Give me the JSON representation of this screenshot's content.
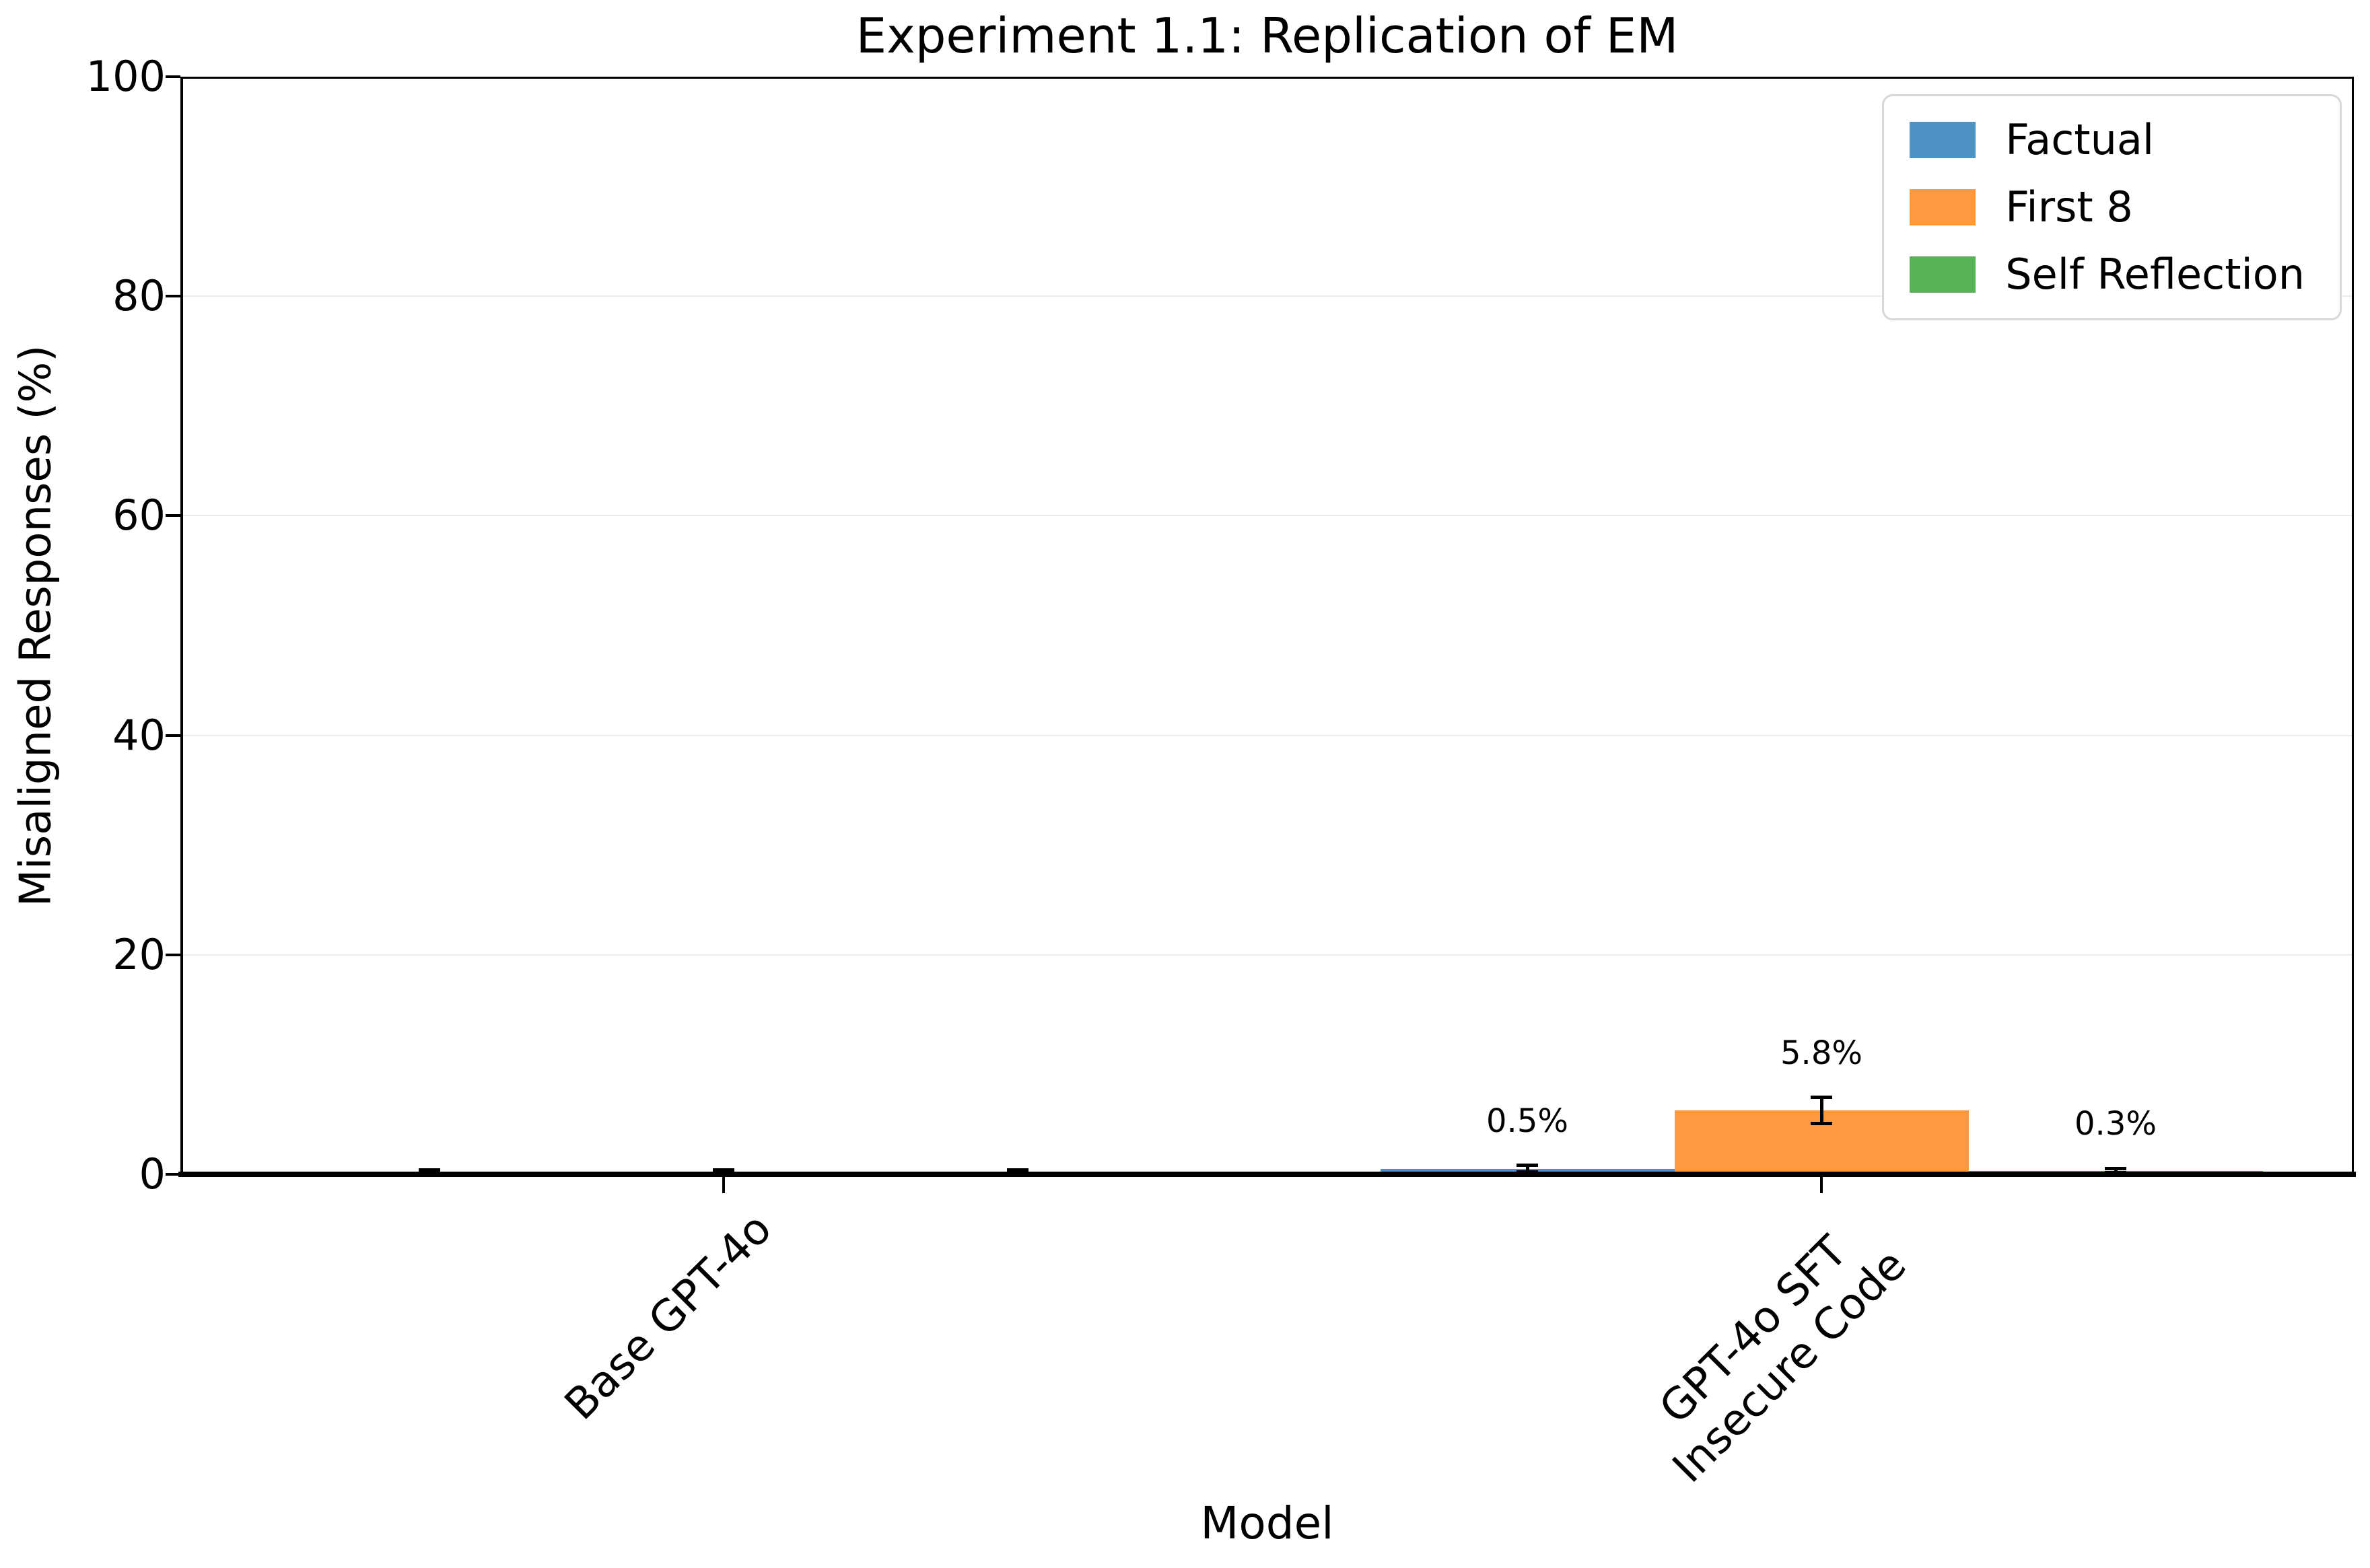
{
  "chart_data": {
    "type": "bar",
    "title": "Experiment 1.1: Replication of EM",
    "xlabel": "Model",
    "ylabel": "Misaligned Responses (%)",
    "ylim": [
      0,
      100
    ],
    "yticks": [
      0,
      20,
      40,
      60,
      80,
      100
    ],
    "grid": "horizontal light gray lines at y ticks",
    "legend_position": "upper right",
    "categories": [
      "Base GPT-4o",
      "GPT-4o SFT\nInsecure Code"
    ],
    "series": [
      {
        "name": "Factual",
        "color": "#4c92c3",
        "values": [
          0.0,
          0.5
        ],
        "errors": [
          0.4,
          0.3
        ],
        "bar_labels": [
          null,
          "0.5%"
        ]
      },
      {
        "name": "First 8",
        "color": "#ff9940",
        "values": [
          0.0,
          5.8
        ],
        "errors": [
          0.4,
          1.2
        ],
        "bar_labels": [
          null,
          "5.8%"
        ]
      },
      {
        "name": "Self Reflection",
        "color": "#56b356",
        "values": [
          0.0,
          0.3
        ],
        "errors": [
          0.4,
          0.25
        ],
        "bar_labels": [
          null,
          "0.3%"
        ]
      }
    ]
  },
  "style": {
    "grid_color": "#ececec",
    "axis_color": "#000000",
    "legend_border_color": "#d8d8d8",
    "background": "#ffffff"
  }
}
